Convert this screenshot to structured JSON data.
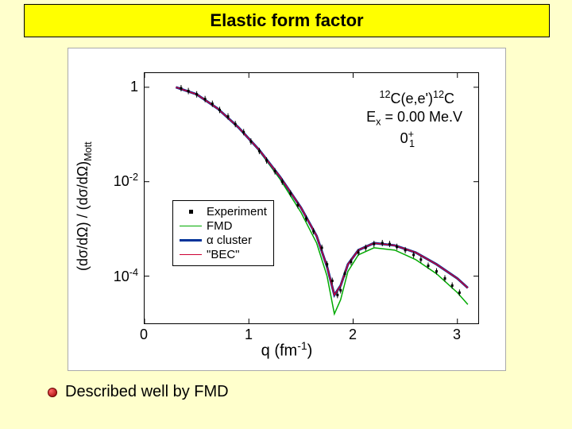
{
  "title": "Elastic form factor",
  "chart": {
    "type": "line+scatter",
    "x_label": "q (fm⁻¹)",
    "y_label": "(dσ/dΩ) / (dσ/dΩ)ₘₒₜₜ",
    "xlim": [
      0,
      3.2
    ],
    "ylim_log10": [
      -5,
      0.3
    ],
    "x_ticks": [
      0,
      1,
      2,
      3
    ],
    "y_ticks_log": [
      {
        "value": 0,
        "label": "1"
      },
      {
        "value": -2,
        "label": "10⁻²"
      },
      {
        "value": -4,
        "label": "10⁻⁴"
      }
    ],
    "background_color": "#ffffff",
    "axis_color": "#000000",
    "reaction_line1": "¹²C(e,e')¹²C",
    "reaction_line2": "Eₓ = 0.00 Me.V",
    "reaction_line3": "0₁⁺",
    "legend": {
      "items": [
        {
          "type": "marker",
          "label": "Experiment",
          "color": "#000000"
        },
        {
          "type": "line",
          "label": "FMD",
          "color": "#00aa00",
          "width": 1.5
        },
        {
          "type": "line",
          "label": "α cluster",
          "color": "#003399",
          "width": 3
        },
        {
          "type": "line",
          "label": "\"BEC\"",
          "color": "#cc0033",
          "width": 1.5
        }
      ]
    },
    "series": [
      {
        "name": "FMD",
        "color": "#00aa00",
        "width": 1.5,
        "points": [
          [
            0.3,
            0
          ],
          [
            0.5,
            -0.15
          ],
          [
            0.7,
            -0.45
          ],
          [
            0.9,
            -0.85
          ],
          [
            1.1,
            -1.35
          ],
          [
            1.3,
            -1.95
          ],
          [
            1.5,
            -2.65
          ],
          [
            1.65,
            -3.3
          ],
          [
            1.75,
            -4.0
          ],
          [
            1.82,
            -4.8
          ],
          [
            1.88,
            -4.5
          ],
          [
            1.95,
            -3.9
          ],
          [
            2.05,
            -3.55
          ],
          [
            2.2,
            -3.4
          ],
          [
            2.4,
            -3.45
          ],
          [
            2.6,
            -3.65
          ],
          [
            2.8,
            -3.95
          ],
          [
            3.0,
            -4.35
          ],
          [
            3.1,
            -4.6
          ]
        ]
      },
      {
        "name": "alpha-cluster",
        "color": "#003399",
        "width": 3,
        "points": [
          [
            0.3,
            0
          ],
          [
            0.5,
            -0.15
          ],
          [
            0.7,
            -0.45
          ],
          [
            0.9,
            -0.85
          ],
          [
            1.1,
            -1.33
          ],
          [
            1.3,
            -1.9
          ],
          [
            1.5,
            -2.55
          ],
          [
            1.65,
            -3.15
          ],
          [
            1.75,
            -3.8
          ],
          [
            1.82,
            -4.4
          ],
          [
            1.88,
            -4.2
          ],
          [
            1.95,
            -3.75
          ],
          [
            2.05,
            -3.45
          ],
          [
            2.2,
            -3.3
          ],
          [
            2.4,
            -3.35
          ],
          [
            2.6,
            -3.5
          ],
          [
            2.8,
            -3.75
          ],
          [
            3.0,
            -4.05
          ],
          [
            3.1,
            -4.25
          ]
        ]
      },
      {
        "name": "BEC",
        "color": "#cc0033",
        "width": 1.5,
        "points": [
          [
            0.3,
            0
          ],
          [
            0.5,
            -0.15
          ],
          [
            0.7,
            -0.45
          ],
          [
            0.9,
            -0.85
          ],
          [
            1.1,
            -1.33
          ],
          [
            1.3,
            -1.9
          ],
          [
            1.5,
            -2.55
          ],
          [
            1.65,
            -3.15
          ],
          [
            1.75,
            -3.8
          ],
          [
            1.82,
            -4.4
          ],
          [
            1.88,
            -4.2
          ],
          [
            1.95,
            -3.75
          ],
          [
            2.05,
            -3.45
          ],
          [
            2.2,
            -3.3
          ],
          [
            2.4,
            -3.35
          ],
          [
            2.6,
            -3.5
          ],
          [
            2.8,
            -3.75
          ],
          [
            3.0,
            -4.05
          ],
          [
            3.1,
            -4.25
          ]
        ]
      }
    ],
    "experiment": [
      [
        0.35,
        -0.02
      ],
      [
        0.42,
        -0.08
      ],
      [
        0.5,
        -0.15
      ],
      [
        0.58,
        -0.25
      ],
      [
        0.65,
        -0.35
      ],
      [
        0.72,
        -0.48
      ],
      [
        0.8,
        -0.62
      ],
      [
        0.87,
        -0.78
      ],
      [
        0.95,
        -0.95
      ],
      [
        1.02,
        -1.15
      ],
      [
        1.1,
        -1.35
      ],
      [
        1.17,
        -1.55
      ],
      [
        1.25,
        -1.78
      ],
      [
        1.32,
        -2.0
      ],
      [
        1.4,
        -2.25
      ],
      [
        1.47,
        -2.5
      ],
      [
        1.55,
        -2.78
      ],
      [
        1.62,
        -3.05
      ],
      [
        1.7,
        -3.4
      ],
      [
        1.75,
        -3.75
      ],
      [
        1.8,
        -4.1
      ],
      [
        1.85,
        -4.4
      ],
      [
        1.88,
        -4.3
      ],
      [
        1.92,
        -3.95
      ],
      [
        1.98,
        -3.7
      ],
      [
        2.05,
        -3.5
      ],
      [
        2.12,
        -3.4
      ],
      [
        2.2,
        -3.32
      ],
      [
        2.28,
        -3.3
      ],
      [
        2.35,
        -3.32
      ],
      [
        2.42,
        -3.38
      ],
      [
        2.5,
        -3.45
      ],
      [
        2.58,
        -3.55
      ],
      [
        2.65,
        -3.65
      ],
      [
        2.72,
        -3.78
      ],
      [
        2.8,
        -3.9
      ],
      [
        2.88,
        -4.05
      ],
      [
        2.95,
        -4.2
      ],
      [
        3.02,
        -4.35
      ]
    ],
    "marker_color": "#000000",
    "marker_size": 3
  },
  "bullet_text": "Described well by FMD",
  "colors": {
    "page_bg": "#ffffcc",
    "title_bg": "#ffff00"
  }
}
